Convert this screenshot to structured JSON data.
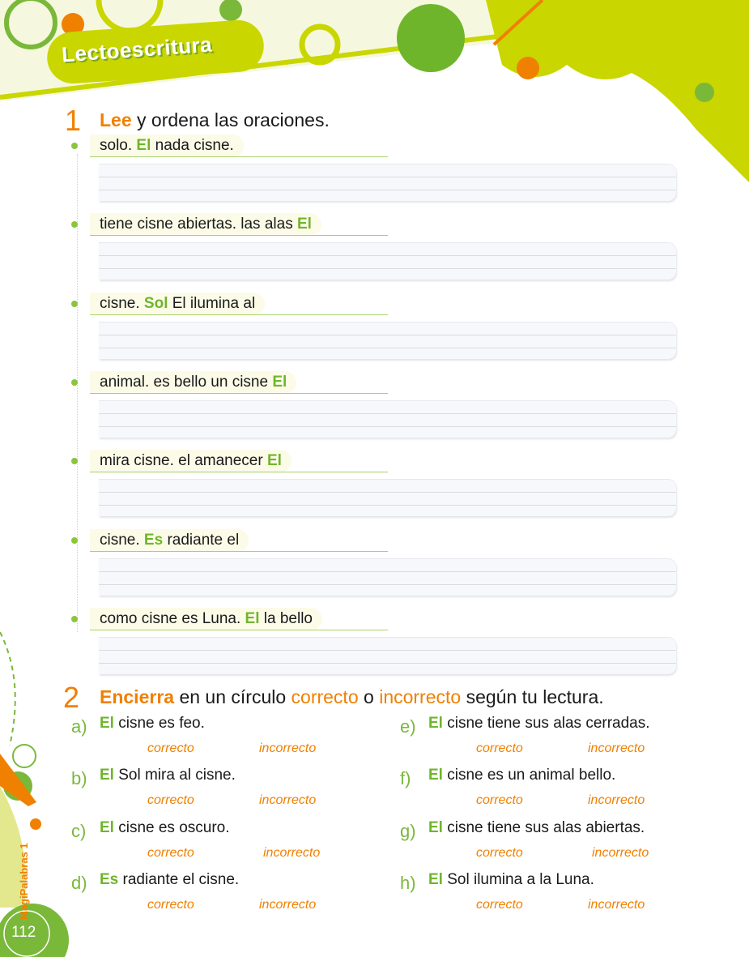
{
  "header": {
    "section_title": "Lectoescritura"
  },
  "exercise1": {
    "number": "1",
    "verb": "Lee",
    "rest": " y ordena las oraciones.",
    "items": [
      {
        "pre": "solo. ",
        "hl": "El",
        "post": " nada cisne."
      },
      {
        "pre": "tiene cisne abiertas. las alas ",
        "hl": "El",
        "post": ""
      },
      {
        "pre": "cisne. ",
        "hl": "Sol",
        "post": " El ilumina al"
      },
      {
        "pre": "animal. es bello un cisne ",
        "hl": "El",
        "post": ""
      },
      {
        "pre": "mira cisne. el amanecer ",
        "hl": "El",
        "post": ""
      },
      {
        "pre": "cisne. ",
        "hl": "Es",
        "post": " radiante el"
      },
      {
        "pre": "como cisne es Luna. ",
        "hl": "El",
        "post": " la bello"
      }
    ]
  },
  "exercise2": {
    "number": "2",
    "verb": "Encierra",
    "p1": " en un círculo ",
    "w1": "correcto",
    "p2": " o ",
    "w2": "incorrecto",
    "p3": " según tu lectura.",
    "items": [
      {
        "letter": "a)",
        "hl": "El",
        "text": " cisne es feo.",
        "opt1": "correcto",
        "opt2": "incorrecto"
      },
      {
        "letter": "b)",
        "hl": "El",
        "text": " Sol mira al cisne.",
        "opt1": "correcto",
        "opt2": "incorrecto"
      },
      {
        "letter": "c)",
        "hl": "El",
        "text": " cisne es oscuro.",
        "opt1": "correcto",
        "opt2": "incorrecto"
      },
      {
        "letter": "d)",
        "hl": "Es",
        "text": " radiante el cisne.",
        "opt1": "correcto",
        "opt2": "incorrecto"
      },
      {
        "letter": "e)",
        "hl": "El",
        "text": " cisne tiene sus alas cerradas.",
        "opt1": "correcto",
        "opt2": "incorrecto"
      },
      {
        "letter": "f)",
        "hl": "El",
        "text": " cisne es un animal bello.",
        "opt1": "correcto",
        "opt2": "incorrecto"
      },
      {
        "letter": "g)",
        "hl": "El",
        "text": " cisne tiene sus alas abiertas.",
        "opt1": "correcto",
        "opt2": "incorrecto"
      },
      {
        "letter": "h)",
        "hl": "El",
        "text": " Sol ilumina a la Luna.",
        "opt1": "correcto",
        "opt2": "incorrecto"
      }
    ]
  },
  "footer": {
    "book": "MagiPalabras 1",
    "page": "112"
  },
  "colors": {
    "accent_orange": "#f08000",
    "accent_green": "#6fb52c",
    "lime": "#c9d600"
  }
}
